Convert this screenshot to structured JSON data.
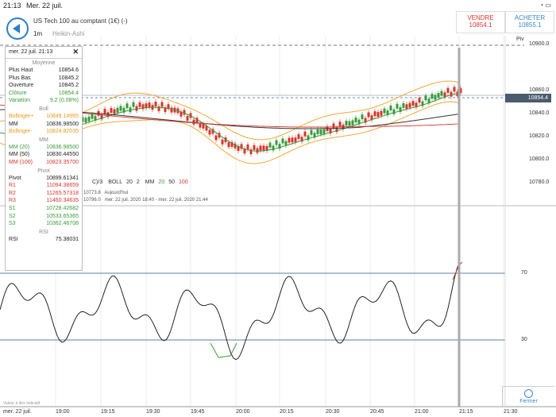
{
  "status": {
    "time": "21:13",
    "date": "Mer. 22 juil.",
    "indicators": "wifi battery"
  },
  "instrument": {
    "title": "US Tech 100 au comptant (1€) (-)",
    "timeframe": "1m",
    "chart_type": "Heikin-Ashi"
  },
  "trade": {
    "sell_label": "VENDRE",
    "sell_price": "10854.1",
    "buy_label": "ACHETER",
    "buy_price": "10855.1"
  },
  "info_panel": {
    "date": "mer. 22 juil. 21:13",
    "avg_title": "Moyenne",
    "avg": [
      {
        "label": "Plus Haut",
        "value": "10854.6",
        "color": "#222"
      },
      {
        "label": "Plus Bas",
        "value": "10845.2",
        "color": "#222"
      },
      {
        "label": "Ouverture",
        "value": "10845.2",
        "color": "#222"
      },
      {
        "label": "Clôture",
        "value": "10854.4",
        "color": "#3a9a3a"
      },
      {
        "label": "Variation",
        "value": "9.2 (0.08%)",
        "color": "#3a9a3a"
      }
    ],
    "boll_title": "Boll",
    "boll": [
      {
        "label": "Bollinger+",
        "value": "10849.14965",
        "color": "#e39b1a"
      },
      {
        "label": "MM",
        "value": "10836.98500",
        "color": "#222"
      },
      {
        "label": "Bollinger-",
        "value": "10824.82035",
        "color": "#e39b1a"
      }
    ],
    "mm_title": "MM",
    "mm": [
      {
        "label": "MM (20)",
        "value": "10836.98500",
        "color": "#3a9a3a"
      },
      {
        "label": "MM (50)",
        "value": "10830.44550",
        "color": "#222"
      },
      {
        "label": "MM (100)",
        "value": "10823.35700",
        "color": "#d9352b"
      }
    ],
    "pivot_title": "Pivot",
    "pivot": [
      {
        "label": "Pivot",
        "value": "10899.61341",
        "color": "#222"
      },
      {
        "label": "R1",
        "value": "11094.38659",
        "color": "#d9352b"
      },
      {
        "label": "R2",
        "value": "11265.57318",
        "color": "#d9352b"
      },
      {
        "label": "R3",
        "value": "11460.34635",
        "color": "#d9352b"
      },
      {
        "label": "S1",
        "value": "10728.42682",
        "color": "#3a9a3a"
      },
      {
        "label": "S2",
        "value": "10533.65365",
        "color": "#3a9a3a"
      },
      {
        "label": "S3",
        "value": "10362.46708",
        "color": "#3a9a3a"
      }
    ],
    "rsi_title": "RSI",
    "rsi": [
      {
        "label": "RSI",
        "value": "75.38031",
        "color": "#222"
      }
    ]
  },
  "indicator_bar": {
    "prefix": "C)/3",
    "boll": "BOLL",
    "boll_p1": "20",
    "boll_p2": "2",
    "mm": "MM",
    "mm1": "20",
    "mm2": "50",
    "mm3": "100",
    "mm1_color": "#3a9a3a",
    "mm2_color": "#222",
    "mm3_color": "#d9352b"
  },
  "period_info": {
    "high": "10773.8",
    "high_label": "Aujourd'hui",
    "low": "10796.0",
    "range": "mer. 22 juil. 2020 18:40 - mer. 22 juil. 2020 21:44"
  },
  "price_axis": [
    "10900.0",
    "10860.0",
    "10840.0",
    "10820.0",
    "10800.0",
    "10780.0"
  ],
  "pivot_label": "Piv",
  "current_price": "10854.4",
  "rsi_axis": [
    "70",
    "30"
  ],
  "time_axis": [
    "mer. 22 juil.",
    "19:00",
    "19:15",
    "19:30",
    "19:45",
    "20:00",
    "20:15",
    "20:30",
    "20:45",
    "21:00",
    "21:15",
    "21:30"
  ],
  "disclaimer": "Valeur à titre indicatif",
  "close_label": "Fermer"
}
